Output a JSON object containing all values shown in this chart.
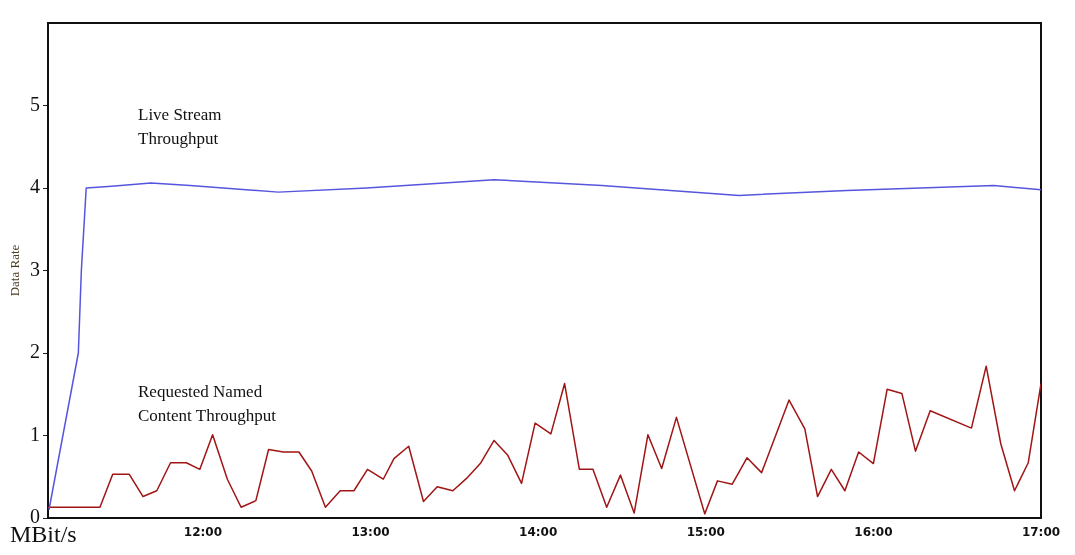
{
  "chart_data": {
    "type": "line",
    "ylabel": "Data Rate",
    "annotations": [
      "MBit/s"
    ],
    "xlim": [
      11.076,
      17
    ],
    "ylim": [
      0,
      6
    ],
    "yticks": [
      0,
      1,
      2,
      3,
      4,
      5
    ],
    "xticks": [
      {
        "value": 12,
        "label": "12:00"
      },
      {
        "value": 13,
        "label": "13:00"
      },
      {
        "value": 14,
        "label": "14:00"
      },
      {
        "value": 15,
        "label": "15:00"
      },
      {
        "value": 16,
        "label": "16:00"
      },
      {
        "value": 17,
        "label": "17:00"
      }
    ],
    "grid": false,
    "legend": false,
    "marker": "none",
    "line_style": "solid",
    "series": [
      {
        "name": "Live Stream Throughput",
        "color": "#5555dd",
        "x": [
          11.082,
          11.257,
          11.275,
          11.304,
          11.456,
          11.69,
          11.924,
          12.45,
          12.977,
          13.737,
          14.38,
          15.199,
          15.842,
          16.719,
          17.0
        ],
        "values": [
          0.1,
          2.0,
          3.0,
          4.0,
          4.02,
          4.06,
          4.03,
          3.95,
          4.0,
          4.1,
          4.03,
          3.91,
          3.97,
          4.03,
          3.98
        ]
      },
      {
        "name": "Requested Named Content Throughput",
        "color": "#a01515",
        "x": [
          11.076,
          11.234,
          11.386,
          11.462,
          11.561,
          11.643,
          11.725,
          11.807,
          11.901,
          11.982,
          12.058,
          12.146,
          12.228,
          12.316,
          12.392,
          12.48,
          12.573,
          12.649,
          12.731,
          12.819,
          12.901,
          12.982,
          13.076,
          13.14,
          13.228,
          13.316,
          13.398,
          13.491,
          13.573,
          13.655,
          13.737,
          13.819,
          13.901,
          13.982,
          14.076,
          14.158,
          14.246,
          14.327,
          14.409,
          14.491,
          14.573,
          14.655,
          14.737,
          14.825,
          14.994,
          15.07,
          15.158,
          15.246,
          15.333,
          15.497,
          15.591,
          15.667,
          15.749,
          15.83,
          15.912,
          16.0,
          16.082,
          16.17,
          16.251,
          16.339,
          16.585,
          16.673,
          16.76,
          16.842,
          16.924,
          17.0
        ],
        "values": [
          0.13,
          0.13,
          0.13,
          0.53,
          0.53,
          0.26,
          0.33,
          0.67,
          0.67,
          0.59,
          1.01,
          0.47,
          0.13,
          0.21,
          0.83,
          0.8,
          0.8,
          0.57,
          0.13,
          0.33,
          0.33,
          0.59,
          0.47,
          0.72,
          0.87,
          0.2,
          0.38,
          0.33,
          0.48,
          0.66,
          0.94,
          0.76,
          0.42,
          1.15,
          1.02,
          1.63,
          0.59,
          0.59,
          0.13,
          0.52,
          0.06,
          1.01,
          0.6,
          1.22,
          0.05,
          0.45,
          0.41,
          0.73,
          0.55,
          1.43,
          1.08,
          0.26,
          0.59,
          0.33,
          0.8,
          0.66,
          1.56,
          1.51,
          0.81,
          1.3,
          1.09,
          1.84,
          0.9,
          0.33,
          0.67,
          1.63
        ]
      }
    ]
  }
}
